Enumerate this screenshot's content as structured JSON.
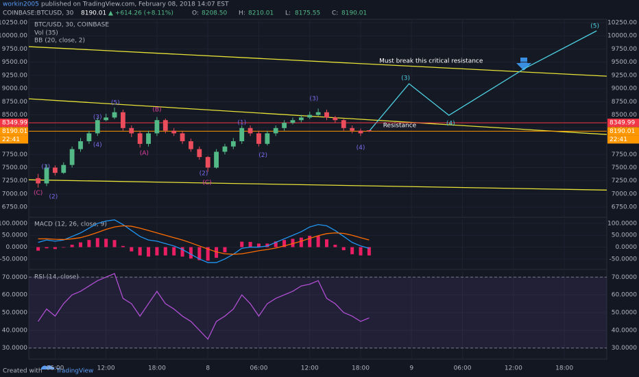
{
  "header": {
    "author": "workin2005",
    "published": "published on TradingView.com, February 08, 2018 14:07 EST",
    "symbol": "COINBASE:BTCUSD, 30",
    "price": "8190.01",
    "change": "▲ +614.26 (+8.11%)",
    "ohlc": [
      {
        "label": "O:",
        "value": "8208.50"
      },
      {
        "label": "H:",
        "value": "8210.01"
      },
      {
        "label": "L:",
        "value": "8175.55"
      },
      {
        "label": "C:",
        "value": "8190.01"
      }
    ]
  },
  "footer": {
    "created": "Created with",
    "brand": "TradingView"
  },
  "chart_data": [
    {
      "type": "candlestick",
      "title": "BTC/USD, 30, COINBASE",
      "legend_items": [
        "Vol (35)",
        "BB (20, close, 2)"
      ],
      "up_color": "#53b987",
      "down_color": "#eb4d5c",
      "x": [
        4,
        5,
        6,
        7,
        8,
        9,
        10,
        11,
        12,
        13,
        14,
        15,
        16,
        17,
        18,
        19,
        20,
        21,
        22,
        23,
        24,
        25,
        26,
        27,
        28,
        29,
        30,
        31,
        32,
        33,
        34,
        35,
        36,
        37,
        38,
        39,
        40,
        41,
        42,
        43
      ],
      "open": [
        7300,
        7200,
        7500,
        7400,
        7550,
        7850,
        8000,
        8150,
        8400,
        8450,
        8550,
        8250,
        8150,
        7950,
        8150,
        8400,
        8200,
        8150,
        8000,
        7850,
        7700,
        7500,
        7800,
        7900,
        8000,
        8250,
        8150,
        7950,
        8150,
        8250,
        8350,
        8400,
        8450,
        8500,
        8550,
        8450,
        8400,
        8250,
        8200,
        8208.5
      ],
      "high": [
        7380,
        7560,
        7540,
        7600,
        7900,
        8060,
        8200,
        8450,
        8520,
        8640,
        8600,
        8300,
        8200,
        8200,
        8460,
        8430,
        8250,
        8200,
        8050,
        7900,
        7720,
        7850,
        7950,
        8060,
        8300,
        8300,
        8200,
        8200,
        8300,
        8400,
        8450,
        8500,
        8560,
        8620,
        8600,
        8480,
        8420,
        8300,
        8240,
        8210.01
      ],
      "low": [
        7120,
        7150,
        7350,
        7380,
        7500,
        7800,
        7950,
        8100,
        8380,
        8420,
        8200,
        8080,
        7880,
        7900,
        8100,
        8150,
        8100,
        7950,
        7800,
        7650,
        7420,
        7480,
        7750,
        7850,
        7950,
        8100,
        7900,
        7920,
        8100,
        8200,
        8320,
        8360,
        8420,
        8480,
        8400,
        8350,
        8200,
        8150,
        8100,
        8175.55
      ],
      "close": [
        7200,
        7500,
        7400,
        7550,
        7850,
        8000,
        8150,
        8400,
        8450,
        8550,
        8250,
        8150,
        7950,
        8150,
        8400,
        8200,
        8150,
        8000,
        7850,
        7700,
        7500,
        7800,
        7900,
        8000,
        8250,
        8150,
        7950,
        8150,
        8250,
        8350,
        8400,
        8450,
        8500,
        8550,
        8450,
        8400,
        8250,
        8200,
        8150,
        8190.01
      ],
      "xlim": [
        2.9,
        71
      ],
      "xticks": [
        {
          "value": 6,
          "label": "06:00"
        },
        {
          "value": 12,
          "label": "12:00"
        },
        {
          "value": 18,
          "label": "18:00"
        },
        {
          "value": 24,
          "label": "8"
        },
        {
          "value": 30,
          "label": "06:00"
        },
        {
          "value": 36,
          "label": "12:00"
        },
        {
          "value": 42,
          "label": "18:00"
        },
        {
          "value": 48,
          "label": "9"
        },
        {
          "value": 54,
          "label": "06:00"
        },
        {
          "value": 60,
          "label": "12:00"
        },
        {
          "value": 66,
          "label": "18:00"
        }
      ],
      "ylim": [
        6570,
        10315
      ],
      "yticks": [
        {
          "value": 6750,
          "label": "6750.00"
        },
        {
          "value": 7000,
          "label": "7000.00"
        },
        {
          "value": 7250,
          "label": "7250.00"
        },
        {
          "value": 7500,
          "label": "7500.00"
        },
        {
          "value": 7750,
          "label": "7750.00"
        },
        {
          "value": 8000,
          "label": "8000.00"
        },
        {
          "value": 8250,
          "label": "8250.00"
        },
        {
          "value": 8500,
          "label": "8500.00"
        },
        {
          "value": 8750,
          "label": "8750.00"
        },
        {
          "value": 9000,
          "label": "9000.00"
        },
        {
          "value": 9250,
          "label": "9250.00"
        },
        {
          "value": 9500,
          "label": "9500.00"
        },
        {
          "value": 9750,
          "label": "9750.00"
        },
        {
          "value": 10000,
          "label": "10000.00"
        },
        {
          "value": 10250,
          "label": "10250.00"
        }
      ],
      "lines": [
        {
          "color": "#e8e337",
          "x": [
            2.9,
            71
          ],
          "y": [
            9794,
            9234
          ]
        },
        {
          "color": "#e8e337",
          "x": [
            2.9,
            71
          ],
          "y": [
            8805,
            8128
          ]
        },
        {
          "color": "#e8e337",
          "x": [
            2.9,
            71
          ],
          "y": [
            7268,
            7073
          ]
        },
        {
          "color": "#4dd0e1",
          "x": [
            43,
            47.7,
            52.4,
            61.3,
            69.8
          ],
          "y": [
            8190,
            9091,
            8492,
            9378,
            10094
          ]
        }
      ],
      "price_lines": [
        {
          "value": 8349.99,
          "label": "8349.99",
          "color": "#f23645"
        },
        {
          "value": 8190.01,
          "label": "8190.01",
          "color": "#ff9800"
        }
      ],
      "countdown": "22:41",
      "annotations": [
        {
          "text": "(C)",
          "x": 4.0,
          "y": 7021,
          "color": "#e040a0"
        },
        {
          "text": "(1)",
          "x": 4.9,
          "y": 7513,
          "color": "#7b6cf0"
        },
        {
          "text": "(2)",
          "x": 5.8,
          "y": 6944,
          "color": "#7b6cf0"
        },
        {
          "text": "(3)",
          "x": 11.0,
          "y": 8453,
          "color": "#7b6cf0"
        },
        {
          "text": "(4)",
          "x": 11.0,
          "y": 7932,
          "color": "#7b6cf0"
        },
        {
          "text": "(5)",
          "x": 13.1,
          "y": 8727,
          "color": "#7b6cf0"
        },
        {
          "text": "(A)",
          "x": 16.5,
          "y": 7776,
          "color": "#e040a0"
        },
        {
          "text": "(B)",
          "x": 18.0,
          "y": 8596,
          "color": "#e040a0"
        },
        {
          "text": "(2)",
          "x": 23.5,
          "y": 7386,
          "color": "#7b6cf0"
        },
        {
          "text": "(C)",
          "x": 23.9,
          "y": 7216,
          "color": "#e040a0"
        },
        {
          "text": "(1)",
          "x": 28.0,
          "y": 8349,
          "color": "#7b6cf0"
        },
        {
          "text": "(2)",
          "x": 30.5,
          "y": 7737,
          "color": "#7b6cf0"
        },
        {
          "text": "(3)",
          "x": 36.5,
          "y": 8805,
          "color": "#7b6cf0"
        },
        {
          "text": "(4)",
          "x": 42.0,
          "y": 7880,
          "color": "#7b6cf0"
        },
        {
          "text": "(3)",
          "x": 47.3,
          "y": 9195,
          "color": "#4dd0e1"
        },
        {
          "text": "(4)",
          "x": 52.6,
          "y": 8336,
          "color": "#4dd0e1"
        },
        {
          "text": "(5)",
          "x": 69.6,
          "y": 10185,
          "color": "#4dd0e1"
        },
        {
          "text": "Must break this critical resistance",
          "x": 50.3,
          "y": 9521,
          "color": "#ffffff"
        },
        {
          "text": "Resistance",
          "x": 46.6,
          "y": 8297,
          "color": "#ffffff"
        }
      ]
    },
    {
      "type": "line",
      "title": "MACD (12, 26, close, 9)",
      "x": [
        4,
        5,
        6,
        7,
        8,
        9,
        10,
        11,
        12,
        13,
        14,
        15,
        16,
        17,
        18,
        19,
        20,
        21,
        22,
        23,
        24,
        25,
        26,
        27,
        28,
        29,
        30,
        31,
        32,
        33,
        34,
        35,
        36,
        37,
        38,
        39,
        40,
        41,
        42,
        43
      ],
      "ylim": [
        -88,
        120
      ],
      "yticks": [
        {
          "value": 100,
          "label": "100.0000"
        },
        {
          "value": 50,
          "label": "50.0000"
        },
        {
          "value": 0,
          "label": "0.0000"
        },
        {
          "value": -50,
          "label": "-50.0000"
        }
      ],
      "series": [
        {
          "style": "histogram",
          "color": "#e91e63",
          "values": [
            -15,
            -5,
            -8,
            -2,
            10,
            20,
            30,
            38,
            35,
            30,
            5,
            -18,
            -35,
            -40,
            -35,
            -35,
            -35,
            -40,
            -48,
            -55,
            -57,
            -45,
            -22,
            0,
            23,
            22,
            15,
            15,
            24,
            30,
            35,
            40,
            48,
            47,
            33,
            10,
            -13,
            -30,
            -35,
            -35
          ]
        },
        {
          "style": "line",
          "color": "#2196f3",
          "values": [
            20,
            30,
            25,
            30,
            45,
            60,
            80,
            100,
            110,
            115,
            95,
            70,
            45,
            30,
            25,
            15,
            5,
            -10,
            -30,
            -50,
            -65,
            -65,
            -50,
            -30,
            -5,
            0,
            0,
            5,
            20,
            35,
            50,
            65,
            85,
            95,
            90,
            70,
            45,
            20,
            5,
            -5
          ]
        },
        {
          "style": "line",
          "color": "#ff6d00",
          "values": [
            35,
            35,
            33,
            32,
            35,
            40,
            50,
            62,
            75,
            85,
            90,
            88,
            80,
            70,
            60,
            50,
            40,
            30,
            18,
            5,
            -8,
            -20,
            -28,
            -30,
            -28,
            -22,
            -15,
            -10,
            -4,
            5,
            15,
            25,
            37,
            48,
            57,
            60,
            58,
            50,
            40,
            30
          ]
        }
      ]
    },
    {
      "type": "line",
      "title": "RSI (14, close)",
      "x": [
        4,
        5,
        6,
        7,
        8,
        9,
        10,
        11,
        12,
        13,
        14,
        15,
        16,
        17,
        18,
        19,
        20,
        21,
        22,
        23,
        24,
        25,
        26,
        27,
        28,
        29,
        30,
        31,
        32,
        33,
        34,
        35,
        36,
        37,
        38,
        39,
        40,
        41,
        42,
        43
      ],
      "ylim": [
        23.7,
        73.2
      ],
      "yticks": [
        {
          "value": 70,
          "label": "70.0000"
        },
        {
          "value": 60,
          "label": "60.0000"
        },
        {
          "value": 50,
          "label": "50.0000"
        },
        {
          "value": 40,
          "label": "40.0000"
        },
        {
          "value": 30,
          "label": "30.0000"
        }
      ],
      "band": [
        30,
        70
      ],
      "band_color": "#7e57c2",
      "series": [
        {
          "style": "line",
          "color": "#b04fd1",
          "values": [
            45,
            52,
            48,
            55,
            60,
            62,
            65,
            68,
            70,
            72,
            58,
            55,
            48,
            55,
            62,
            55,
            52,
            48,
            45,
            40,
            35,
            45,
            48,
            52,
            60,
            55,
            48,
            55,
            58,
            60,
            62,
            65,
            66,
            68,
            58,
            55,
            50,
            48,
            45,
            47
          ]
        }
      ]
    }
  ]
}
